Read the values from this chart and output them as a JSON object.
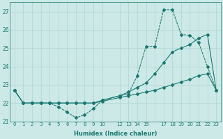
{
  "xlabel": "Humidex (Indice chaleur)",
  "bg_color": "#cce9e7",
  "line_color": "#1a7870",
  "grid_color": "#aed4d1",
  "xlim": [
    -0.5,
    23.5
  ],
  "ylim": [
    21.0,
    27.5
  ],
  "yticks": [
    21,
    22,
    23,
    24,
    25,
    26,
    27
  ],
  "xtick_positions": [
    0,
    1,
    2,
    3,
    4,
    5,
    6,
    7,
    8,
    9,
    10,
    12,
    13,
    14,
    15,
    16,
    17,
    18,
    19,
    20,
    21,
    22,
    23
  ],
  "xtick_labels": [
    "0",
    "1",
    "2",
    "3",
    "4",
    "5",
    "6",
    "7",
    "8",
    "9",
    "10",
    "12",
    "13",
    "14",
    "15",
    "",
    "17",
    "18",
    "19",
    "20",
    "21",
    "22",
    "23"
  ],
  "line1_x": [
    0,
    1,
    2,
    3,
    4,
    5,
    6,
    7,
    8,
    9,
    10,
    12,
    13,
    14,
    15,
    16,
    17,
    18,
    19,
    20,
    21,
    22,
    23
  ],
  "line1_y": [
    22.7,
    22.0,
    22.0,
    22.0,
    22.0,
    21.8,
    21.5,
    21.2,
    21.35,
    21.7,
    22.15,
    22.4,
    22.5,
    23.5,
    25.1,
    25.1,
    27.1,
    27.1,
    25.75,
    25.7,
    25.3,
    24.0,
    22.7
  ],
  "line2_x": [
    0,
    1,
    2,
    3,
    4,
    5,
    6,
    7,
    8,
    9,
    10,
    12,
    13,
    14,
    15,
    16,
    17,
    18,
    19,
    20,
    21,
    22,
    23
  ],
  "line2_y": [
    22.7,
    22.0,
    22.0,
    22.0,
    22.0,
    22.0,
    22.0,
    22.0,
    22.0,
    22.0,
    22.15,
    22.4,
    22.6,
    22.85,
    23.1,
    23.6,
    24.2,
    24.8,
    25.0,
    25.2,
    25.55,
    25.75,
    22.7
  ],
  "line3_x": [
    0,
    1,
    2,
    3,
    4,
    5,
    6,
    7,
    8,
    9,
    10,
    12,
    13,
    14,
    15,
    16,
    17,
    18,
    19,
    20,
    21,
    22,
    23
  ],
  "line3_y": [
    22.7,
    22.0,
    22.0,
    22.0,
    22.0,
    22.0,
    22.0,
    22.0,
    22.0,
    22.0,
    22.1,
    22.3,
    22.4,
    22.5,
    22.6,
    22.7,
    22.85,
    23.0,
    23.15,
    23.3,
    23.5,
    23.6,
    22.7
  ]
}
